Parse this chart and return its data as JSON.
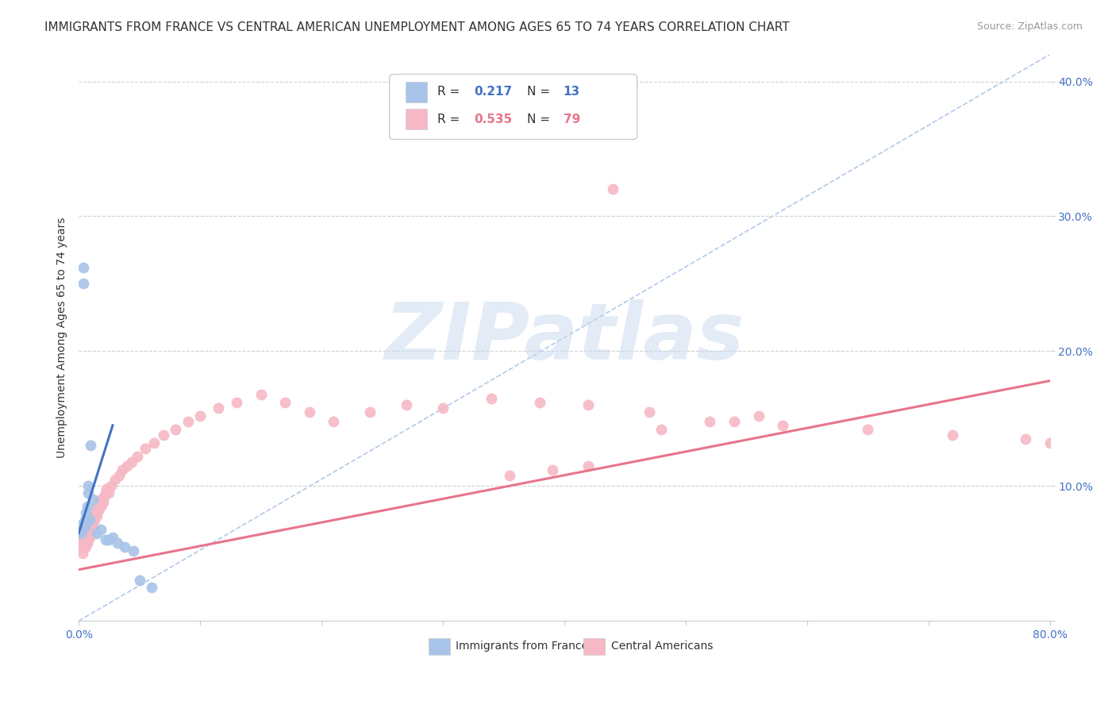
{
  "title": "IMMIGRANTS FROM FRANCE VS CENTRAL AMERICAN UNEMPLOYMENT AMONG AGES 65 TO 74 YEARS CORRELATION CHART",
  "source": "Source: ZipAtlas.com",
  "ylabel": "Unemployment Among Ages 65 to 74 years",
  "xlim": [
    0.0,
    0.8
  ],
  "ylim": [
    0.0,
    0.42
  ],
  "xticks": [
    0.0,
    0.1,
    0.2,
    0.3,
    0.4,
    0.5,
    0.6,
    0.7,
    0.8
  ],
  "yticks": [
    0.0,
    0.1,
    0.2,
    0.3,
    0.4
  ],
  "blue_color": "#a8c4e8",
  "pink_color": "#f5b8c4",
  "blue_line_color": "#4472c4",
  "pink_line_color": "#e8748a",
  "diag_color": "#a8c4e8",
  "background_color": "#ffffff",
  "grid_color": "#d0d0d0",
  "france_x": [
    0.002,
    0.003,
    0.003,
    0.004,
    0.004,
    0.005,
    0.005,
    0.006,
    0.007,
    0.008,
    0.008,
    0.009,
    0.01,
    0.012,
    0.015,
    0.018,
    0.022,
    0.025,
    0.028,
    0.032,
    0.038,
    0.045,
    0.05,
    0.06
  ],
  "france_y": [
    0.065,
    0.068,
    0.072,
    0.25,
    0.262,
    0.07,
    0.075,
    0.08,
    0.085,
    0.095,
    0.1,
    0.075,
    0.13,
    0.09,
    0.065,
    0.068,
    0.06,
    0.06,
    0.062,
    0.058,
    0.055,
    0.052,
    0.03,
    0.025
  ],
  "central_x": [
    0.002,
    0.002,
    0.003,
    0.003,
    0.004,
    0.004,
    0.005,
    0.005,
    0.005,
    0.006,
    0.006,
    0.006,
    0.007,
    0.007,
    0.007,
    0.008,
    0.008,
    0.008,
    0.009,
    0.009,
    0.01,
    0.01,
    0.01,
    0.011,
    0.011,
    0.012,
    0.012,
    0.013,
    0.014,
    0.015,
    0.015,
    0.016,
    0.017,
    0.018,
    0.019,
    0.02,
    0.021,
    0.022,
    0.023,
    0.025,
    0.027,
    0.03,
    0.033,
    0.036,
    0.04,
    0.044,
    0.048,
    0.055,
    0.062,
    0.07,
    0.08,
    0.09,
    0.1,
    0.115,
    0.13,
    0.15,
    0.17,
    0.19,
    0.21,
    0.24,
    0.27,
    0.3,
    0.34,
    0.38,
    0.42,
    0.47,
    0.52,
    0.58,
    0.65,
    0.72,
    0.78,
    0.8,
    0.54,
    0.56,
    0.48,
    0.42,
    0.39,
    0.355,
    0.44
  ],
  "central_y": [
    0.055,
    0.065,
    0.05,
    0.06,
    0.055,
    0.065,
    0.058,
    0.062,
    0.07,
    0.055,
    0.06,
    0.068,
    0.058,
    0.065,
    0.07,
    0.06,
    0.065,
    0.072,
    0.062,
    0.068,
    0.065,
    0.07,
    0.075,
    0.068,
    0.075,
    0.07,
    0.078,
    0.075,
    0.08,
    0.078,
    0.085,
    0.082,
    0.088,
    0.085,
    0.09,
    0.088,
    0.092,
    0.095,
    0.098,
    0.095,
    0.1,
    0.105,
    0.108,
    0.112,
    0.115,
    0.118,
    0.122,
    0.128,
    0.132,
    0.138,
    0.142,
    0.148,
    0.152,
    0.158,
    0.162,
    0.168,
    0.162,
    0.155,
    0.148,
    0.155,
    0.16,
    0.158,
    0.165,
    0.162,
    0.16,
    0.155,
    0.148,
    0.145,
    0.142,
    0.138,
    0.135,
    0.132,
    0.148,
    0.152,
    0.142,
    0.115,
    0.112,
    0.108,
    0.32
  ],
  "france_line_x0": 0.0,
  "france_line_y0": 0.065,
  "france_line_x1": 0.028,
  "france_line_y1": 0.145,
  "central_line_x0": 0.0,
  "central_line_y0": 0.038,
  "central_line_x1": 0.8,
  "central_line_y1": 0.178,
  "title_fontsize": 11,
  "axis_label_fontsize": 10,
  "tick_fontsize": 10,
  "legend_fontsize": 11,
  "watermark_text": "ZIPatlas"
}
